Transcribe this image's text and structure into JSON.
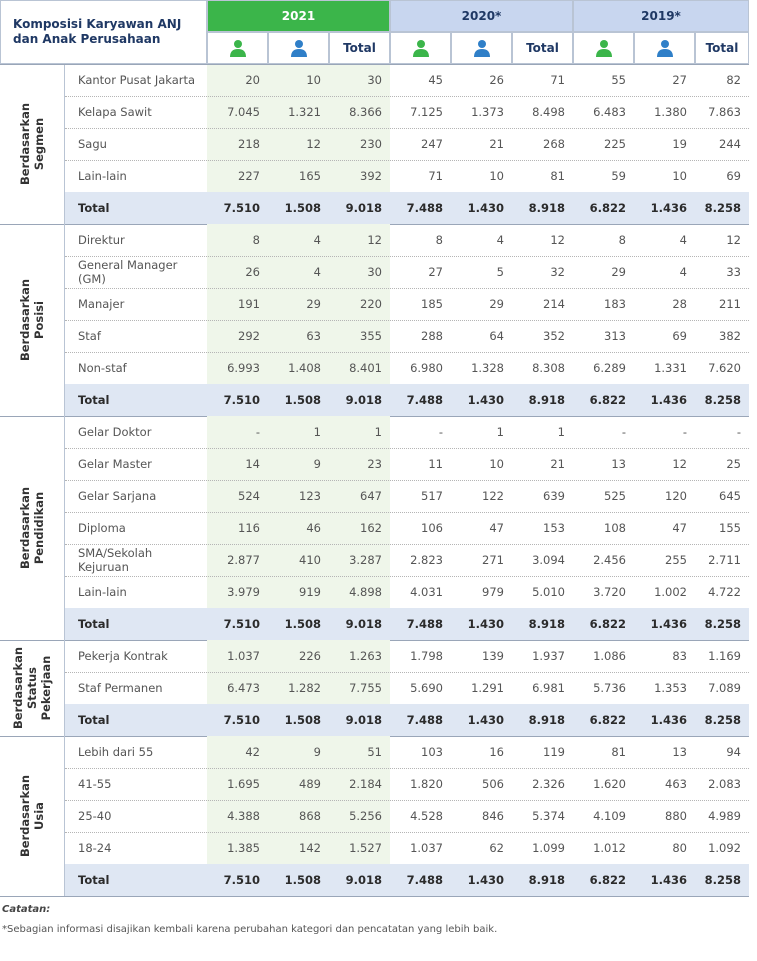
{
  "header": {
    "title_lines": [
      "Komposisi Karyawan ANJ",
      "dan Anak Perusahaan"
    ],
    "years": [
      "2021",
      "2020*",
      "2019*"
    ],
    "total_label": "Total"
  },
  "groups": [
    {
      "label_lines": [
        "Berdasarkan",
        "Segmen"
      ],
      "rows": [
        {
          "label_lines": [
            "Kantor Pusat Jakarta"
          ],
          "values": [
            "20",
            "10",
            "30",
            "45",
            "26",
            "71",
            "55",
            "27",
            "82"
          ]
        },
        {
          "label_lines": [
            "Kelapa Sawit"
          ],
          "values": [
            "7.045",
            "1.321",
            "8.366",
            "7.125",
            "1.373",
            "8.498",
            "6.483",
            "1.380",
            "7.863"
          ]
        },
        {
          "label_lines": [
            "Sagu"
          ],
          "values": [
            "218",
            "12",
            "230",
            "247",
            "21",
            "268",
            "225",
            "19",
            "244"
          ]
        },
        {
          "label_lines": [
            "Lain-lain"
          ],
          "values": [
            "227",
            "165",
            "392",
            "71",
            "10",
            "81",
            "59",
            "10",
            "69"
          ]
        }
      ],
      "total": {
        "label": "Total",
        "values": [
          "7.510",
          "1.508",
          "9.018",
          "7.488",
          "1.430",
          "8.918",
          "6.822",
          "1.436",
          "8.258"
        ]
      }
    },
    {
      "label_lines": [
        "Berdasarkan",
        "Posisi"
      ],
      "rows": [
        {
          "label_lines": [
            "Direktur"
          ],
          "values": [
            "8",
            "4",
            "12",
            "8",
            "4",
            "12",
            "8",
            "4",
            "12"
          ]
        },
        {
          "label_lines": [
            "General Manager",
            "(GM)"
          ],
          "values": [
            "26",
            "4",
            "30",
            "27",
            "5",
            "32",
            "29",
            "4",
            "33"
          ]
        },
        {
          "label_lines": [
            "Manajer"
          ],
          "values": [
            "191",
            "29",
            "220",
            "185",
            "29",
            "214",
            "183",
            "28",
            "211"
          ]
        },
        {
          "label_lines": [
            "Staf"
          ],
          "values": [
            "292",
            "63",
            "355",
            "288",
            "64",
            "352",
            "313",
            "69",
            "382"
          ]
        },
        {
          "label_lines": [
            "Non-staf"
          ],
          "values": [
            "6.993",
            "1.408",
            "8.401",
            "6.980",
            "1.328",
            "8.308",
            "6.289",
            "1.331",
            "7.620"
          ]
        }
      ],
      "total": {
        "label": "Total",
        "values": [
          "7.510",
          "1.508",
          "9.018",
          "7.488",
          "1.430",
          "8.918",
          "6.822",
          "1.436",
          "8.258"
        ]
      }
    },
    {
      "label_lines": [
        "Berdasarkan",
        "Pendidikan"
      ],
      "rows": [
        {
          "label_lines": [
            "Gelar Doktor"
          ],
          "values": [
            "-",
            "1",
            "1",
            "-",
            "1",
            "1",
            "-",
            "-",
            "-"
          ]
        },
        {
          "label_lines": [
            "Gelar Master"
          ],
          "values": [
            "14",
            "9",
            "23",
            "11",
            "10",
            "21",
            "13",
            "12",
            "25"
          ]
        },
        {
          "label_lines": [
            "Gelar Sarjana"
          ],
          "values": [
            "524",
            "123",
            "647",
            "517",
            "122",
            "639",
            "525",
            "120",
            "645"
          ]
        },
        {
          "label_lines": [
            "Diploma"
          ],
          "values": [
            "116",
            "46",
            "162",
            "106",
            "47",
            "153",
            "108",
            "47",
            "155"
          ]
        },
        {
          "label_lines": [
            "SMA/Sekolah",
            "Kejuruan"
          ],
          "values": [
            "2.877",
            "410",
            "3.287",
            "2.823",
            "271",
            "3.094",
            "2.456",
            "255",
            "2.711"
          ]
        },
        {
          "label_lines": [
            "Lain-lain"
          ],
          "values": [
            "3.979",
            "919",
            "4.898",
            "4.031",
            "979",
            "5.010",
            "3.720",
            "1.002",
            "4.722"
          ]
        }
      ],
      "total": {
        "label": "Total",
        "values": [
          "7.510",
          "1.508",
          "9.018",
          "7.488",
          "1.430",
          "8.918",
          "6.822",
          "1.436",
          "8.258"
        ]
      }
    },
    {
      "label_lines": [
        "Berdasarkan",
        "Status",
        "Pekerjaan"
      ],
      "rows": [
        {
          "label_lines": [
            "Pekerja Kontrak"
          ],
          "values": [
            "1.037",
            "226",
            "1.263",
            "1.798",
            "139",
            "1.937",
            "1.086",
            "83",
            "1.169"
          ]
        },
        {
          "label_lines": [
            "Staf Permanen"
          ],
          "values": [
            "6.473",
            "1.282",
            "7.755",
            "5.690",
            "1.291",
            "6.981",
            "5.736",
            "1.353",
            "7.089"
          ]
        }
      ],
      "total": {
        "label": "Total",
        "values": [
          "7.510",
          "1.508",
          "9.018",
          "7.488",
          "1.430",
          "8.918",
          "6.822",
          "1.436",
          "8.258"
        ]
      }
    },
    {
      "label_lines": [
        "Berdasarkan",
        "Usia"
      ],
      "rows": [
        {
          "label_lines": [
            "Lebih dari 55"
          ],
          "values": [
            "42",
            "9",
            "51",
            "103",
            "16",
            "119",
            "81",
            "13",
            "94"
          ]
        },
        {
          "label_lines": [
            "41-55"
          ],
          "values": [
            "1.695",
            "489",
            "2.184",
            "1.820",
            "506",
            "2.326",
            "1.620",
            "463",
            "2.083"
          ]
        },
        {
          "label_lines": [
            "25-40"
          ],
          "values": [
            "4.388",
            "868",
            "5.256",
            "4.528",
            "846",
            "5.374",
            "4.109",
            "880",
            "4.989"
          ]
        },
        {
          "label_lines": [
            "18-24"
          ],
          "values": [
            "1.385",
            "142",
            "1.527",
            "1.037",
            "62",
            "1.099",
            "1.012",
            "80",
            "1.092"
          ]
        }
      ],
      "total": {
        "label": "Total",
        "values": [
          "7.510",
          "1.508",
          "9.018",
          "7.488",
          "1.430",
          "8.918",
          "6.822",
          "1.436",
          "8.258"
        ]
      }
    }
  ],
  "notes": {
    "heading": "Catatan:",
    "text": "*Sebagian informasi disajikan kembali karena perubahan kategori dan pencatatan yang lebih baik."
  }
}
